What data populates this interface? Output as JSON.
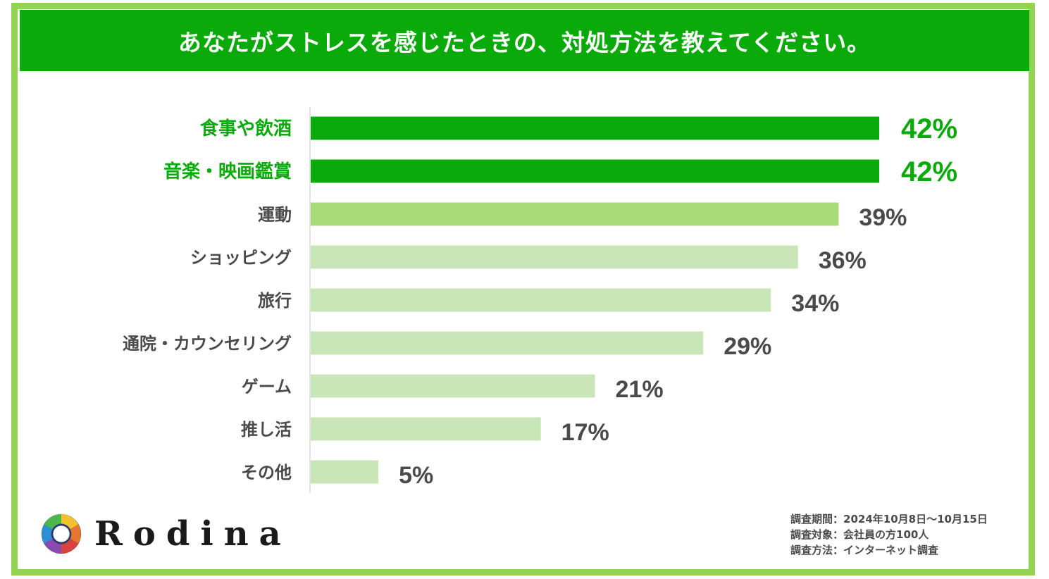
{
  "title": "あなたがストレスを感じたときの、対処方法を教えてください。",
  "chart_data": {
    "type": "bar",
    "orientation": "horizontal",
    "title": "あなたがストレスを感じたときの、対処方法を教えてください。",
    "categories": [
      "食事や飲酒",
      "音楽・映画鑑賞",
      "運動",
      "ショッピング",
      "旅行",
      "通院・カウンセリング",
      "ゲーム",
      "推し活",
      "その他"
    ],
    "values": [
      42,
      42,
      39,
      36,
      34,
      29,
      21,
      17,
      5
    ],
    "value_labels": [
      "42%",
      "42%",
      "39%",
      "36%",
      "34%",
      "29%",
      "21%",
      "17%",
      "5%"
    ],
    "unit": "%",
    "xlim": [
      0,
      42
    ],
    "grid": false,
    "legend": "none",
    "colors": {
      "highlight": "#0aaa0a",
      "secondary": "#a9dc78",
      "other": "#c8e5b8",
      "highlight_label": "#0aaa0a",
      "label": "#4a4a4a"
    },
    "highlight_tier": [
      "highlight",
      "highlight",
      "secondary",
      "other",
      "other",
      "other",
      "other",
      "other",
      "other"
    ]
  },
  "logo": {
    "text": "Rodina"
  },
  "survey": [
    {
      "key": "調査期間",
      "value": "2024年10月8日～10月15日"
    },
    {
      "key": "調査対象",
      "value": "会社員の方100人"
    },
    {
      "key": "調査方法",
      "value": "インターネット調査"
    }
  ],
  "survey_separator": "："
}
